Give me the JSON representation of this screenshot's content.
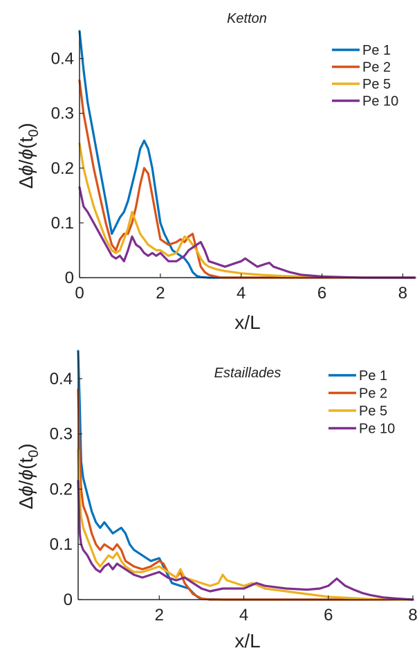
{
  "chart_data": [
    {
      "type": "line",
      "title": "Ketton",
      "xlabel": "x/L",
      "ylabel": "Δϕ/ϕ(t0)",
      "xlim": [
        0,
        8.3
      ],
      "ylim": [
        0,
        0.45
      ],
      "xticks": [
        0,
        2,
        4,
        6,
        8
      ],
      "yticks": [
        0,
        0.1,
        0.2,
        0.3,
        0.4
      ],
      "xtick_labels": [
        "0",
        "2",
        "4",
        "6",
        "8"
      ],
      "ytick_labels": [
        "0",
        "0.1",
        "0.2",
        "0.3",
        "0.4"
      ],
      "legend_position": "top-right",
      "series": [
        {
          "name": "Pe 1",
          "color": "#0072BD",
          "x": [
            0,
            0.1,
            0.2,
            0.35,
            0.5,
            0.65,
            0.8,
            0.9,
            1.0,
            1.1,
            1.2,
            1.3,
            1.4,
            1.5,
            1.6,
            1.7,
            1.8,
            1.9,
            2.0,
            2.1,
            2.2,
            2.3,
            2.4,
            2.5,
            2.6,
            2.7,
            2.8,
            2.9,
            3.0,
            3.2,
            3.5,
            4.0,
            5.0,
            6.0,
            7.0,
            8.3
          ],
          "y": [
            0.45,
            0.38,
            0.32,
            0.26,
            0.2,
            0.14,
            0.08,
            0.095,
            0.11,
            0.12,
            0.14,
            0.17,
            0.2,
            0.235,
            0.25,
            0.235,
            0.2,
            0.15,
            0.1,
            0.08,
            0.065,
            0.05,
            0.045,
            0.04,
            0.035,
            0.025,
            0.01,
            0.003,
            0.001,
            0,
            0,
            0,
            0,
            0,
            0,
            0
          ]
        },
        {
          "name": "Pe 2",
          "color": "#D95319",
          "x": [
            0,
            0.1,
            0.2,
            0.35,
            0.5,
            0.65,
            0.8,
            0.9,
            1.0,
            1.1,
            1.2,
            1.3,
            1.4,
            1.5,
            1.6,
            1.7,
            1.8,
            1.9,
            2.0,
            2.2,
            2.4,
            2.5,
            2.6,
            2.7,
            2.8,
            2.9,
            3.0,
            3.1,
            3.2,
            3.5,
            4.0,
            5.0,
            6.0,
            7.0,
            8.3
          ],
          "y": [
            0.36,
            0.3,
            0.26,
            0.2,
            0.15,
            0.1,
            0.06,
            0.05,
            0.07,
            0.08,
            0.08,
            0.1,
            0.13,
            0.17,
            0.2,
            0.19,
            0.15,
            0.11,
            0.07,
            0.06,
            0.065,
            0.07,
            0.065,
            0.075,
            0.08,
            0.05,
            0.02,
            0.01,
            0.005,
            0,
            0,
            0,
            0,
            0,
            0
          ]
        },
        {
          "name": "Pe 5",
          "color": "#EDB120",
          "x": [
            0,
            0.1,
            0.2,
            0.35,
            0.5,
            0.65,
            0.8,
            0.9,
            1.0,
            1.1,
            1.2,
            1.3,
            1.4,
            1.5,
            1.6,
            1.7,
            1.8,
            1.9,
            2.0,
            2.2,
            2.4,
            2.5,
            2.6,
            2.7,
            2.8,
            2.9,
            3.0,
            3.1,
            3.2,
            3.4,
            3.6,
            3.8,
            4.0,
            4.5,
            5.0,
            5.5,
            6.0,
            7.0,
            8.3
          ],
          "y": [
            0.245,
            0.2,
            0.17,
            0.13,
            0.1,
            0.07,
            0.05,
            0.045,
            0.05,
            0.07,
            0.09,
            0.12,
            0.1,
            0.08,
            0.07,
            0.06,
            0.055,
            0.05,
            0.05,
            0.04,
            0.045,
            0.06,
            0.075,
            0.07,
            0.06,
            0.05,
            0.035,
            0.025,
            0.02,
            0.015,
            0.012,
            0.01,
            0.008,
            0.005,
            0.003,
            0.002,
            0.001,
            0,
            0
          ]
        },
        {
          "name": "Pe 10",
          "color": "#7E2F8E",
          "x": [
            0,
            0.1,
            0.2,
            0.35,
            0.5,
            0.65,
            0.8,
            0.9,
            1.0,
            1.1,
            1.2,
            1.3,
            1.4,
            1.5,
            1.6,
            1.7,
            1.8,
            1.9,
            2.0,
            2.2,
            2.4,
            2.6,
            2.7,
            2.8,
            2.9,
            3.0,
            3.1,
            3.2,
            3.4,
            3.6,
            3.8,
            4.0,
            4.1,
            4.2,
            4.4,
            4.6,
            4.7,
            4.8,
            5.0,
            5.2,
            5.5,
            6.0,
            6.5,
            7.0,
            8.3
          ],
          "y": [
            0.165,
            0.13,
            0.12,
            0.1,
            0.08,
            0.06,
            0.04,
            0.035,
            0.04,
            0.03,
            0.05,
            0.075,
            0.06,
            0.055,
            0.045,
            0.04,
            0.045,
            0.04,
            0.045,
            0.03,
            0.03,
            0.04,
            0.05,
            0.055,
            0.06,
            0.065,
            0.05,
            0.03,
            0.025,
            0.02,
            0.025,
            0.03,
            0.035,
            0.03,
            0.02,
            0.025,
            0.027,
            0.02,
            0.015,
            0.01,
            0.005,
            0.002,
            0.001,
            0,
            0
          ]
        }
      ]
    },
    {
      "type": "line",
      "title": "Estaillades",
      "xlabel": "x/L",
      "ylabel": "Δϕ/ϕ(t0)",
      "xlim": [
        0.08,
        8
      ],
      "ylim": [
        0,
        0.45
      ],
      "xticks": [
        2,
        4,
        6,
        8
      ],
      "yticks": [
        0,
        0.1,
        0.2,
        0.3,
        0.4
      ],
      "xtick_labels": [
        "2",
        "4",
        "6",
        "8"
      ],
      "ytick_labels": [
        "0",
        "0.1",
        "0.2",
        "0.3",
        "0.4"
      ],
      "legend_position": "top-right",
      "series": [
        {
          "name": "Pe 1",
          "color": "#0072BD",
          "x": [
            0.08,
            0.12,
            0.15,
            0.2,
            0.3,
            0.4,
            0.5,
            0.6,
            0.7,
            0.8,
            0.9,
            1.0,
            1.1,
            1.2,
            1.3,
            1.4,
            1.6,
            1.8,
            2.0,
            2.1,
            2.2,
            2.3,
            2.5,
            2.7,
            2.8,
            2.9,
            3.0,
            3.5,
            4.0,
            6.0,
            8.0
          ],
          "y": [
            0.45,
            0.35,
            0.25,
            0.22,
            0.19,
            0.16,
            0.14,
            0.13,
            0.14,
            0.13,
            0.12,
            0.125,
            0.13,
            0.12,
            0.1,
            0.09,
            0.08,
            0.07,
            0.075,
            0.06,
            0.045,
            0.03,
            0.025,
            0.02,
            0.012,
            0.005,
            0.001,
            0,
            0,
            0,
            0
          ]
        },
        {
          "name": "Pe 2",
          "color": "#D95319",
          "x": [
            0.08,
            0.12,
            0.15,
            0.2,
            0.3,
            0.4,
            0.5,
            0.6,
            0.7,
            0.8,
            0.9,
            1.0,
            1.1,
            1.2,
            1.4,
            1.6,
            1.8,
            2.0,
            2.1,
            2.2,
            2.4,
            2.5,
            2.6,
            2.8,
            3.0,
            3.2,
            4.0,
            6.0,
            8.0
          ],
          "y": [
            0.38,
            0.25,
            0.2,
            0.17,
            0.15,
            0.12,
            0.1,
            0.09,
            0.1,
            0.095,
            0.09,
            0.1,
            0.09,
            0.07,
            0.06,
            0.055,
            0.06,
            0.07,
            0.065,
            0.05,
            0.04,
            0.05,
            0.03,
            0.01,
            0.002,
            0,
            0,
            0,
            0
          ]
        },
        {
          "name": "Pe 5",
          "color": "#EDB120",
          "x": [
            0.08,
            0.12,
            0.15,
            0.2,
            0.3,
            0.4,
            0.5,
            0.6,
            0.7,
            0.8,
            0.9,
            1.0,
            1.1,
            1.2,
            1.4,
            1.6,
            1.8,
            2.0,
            2.2,
            2.4,
            2.5,
            2.6,
            2.8,
            3.0,
            3.2,
            3.4,
            3.5,
            3.6,
            3.8,
            4.0,
            4.2,
            4.5,
            5.0,
            5.5,
            6.0,
            6.5,
            7.0,
            8.0
          ],
          "y": [
            0.27,
            0.18,
            0.15,
            0.13,
            0.11,
            0.09,
            0.07,
            0.06,
            0.07,
            0.08,
            0.075,
            0.085,
            0.07,
            0.06,
            0.05,
            0.05,
            0.055,
            0.06,
            0.05,
            0.04,
            0.055,
            0.04,
            0.035,
            0.03,
            0.025,
            0.03,
            0.045,
            0.035,
            0.03,
            0.025,
            0.03,
            0.02,
            0.015,
            0.01,
            0.005,
            0.003,
            0.001,
            0
          ]
        },
        {
          "name": "Pe 10",
          "color": "#7E2F8E",
          "x": [
            0.08,
            0.12,
            0.15,
            0.2,
            0.3,
            0.4,
            0.5,
            0.6,
            0.7,
            0.8,
            0.9,
            1.0,
            1.1,
            1.2,
            1.4,
            1.6,
            1.8,
            2.0,
            2.2,
            2.4,
            2.6,
            2.8,
            3.0,
            3.2,
            3.5,
            4.0,
            4.3,
            4.5,
            5.0,
            5.5,
            5.8,
            6.0,
            6.2,
            6.4,
            6.6,
            6.8,
            7.0,
            7.3,
            7.6,
            8.0
          ],
          "y": [
            0.215,
            0.12,
            0.1,
            0.09,
            0.08,
            0.065,
            0.055,
            0.05,
            0.06,
            0.065,
            0.055,
            0.065,
            0.06,
            0.055,
            0.045,
            0.04,
            0.045,
            0.05,
            0.04,
            0.035,
            0.04,
            0.03,
            0.02,
            0.015,
            0.02,
            0.02,
            0.03,
            0.025,
            0.02,
            0.018,
            0.02,
            0.025,
            0.038,
            0.025,
            0.018,
            0.012,
            0.008,
            0.004,
            0.002,
            0
          ]
        }
      ]
    }
  ]
}
